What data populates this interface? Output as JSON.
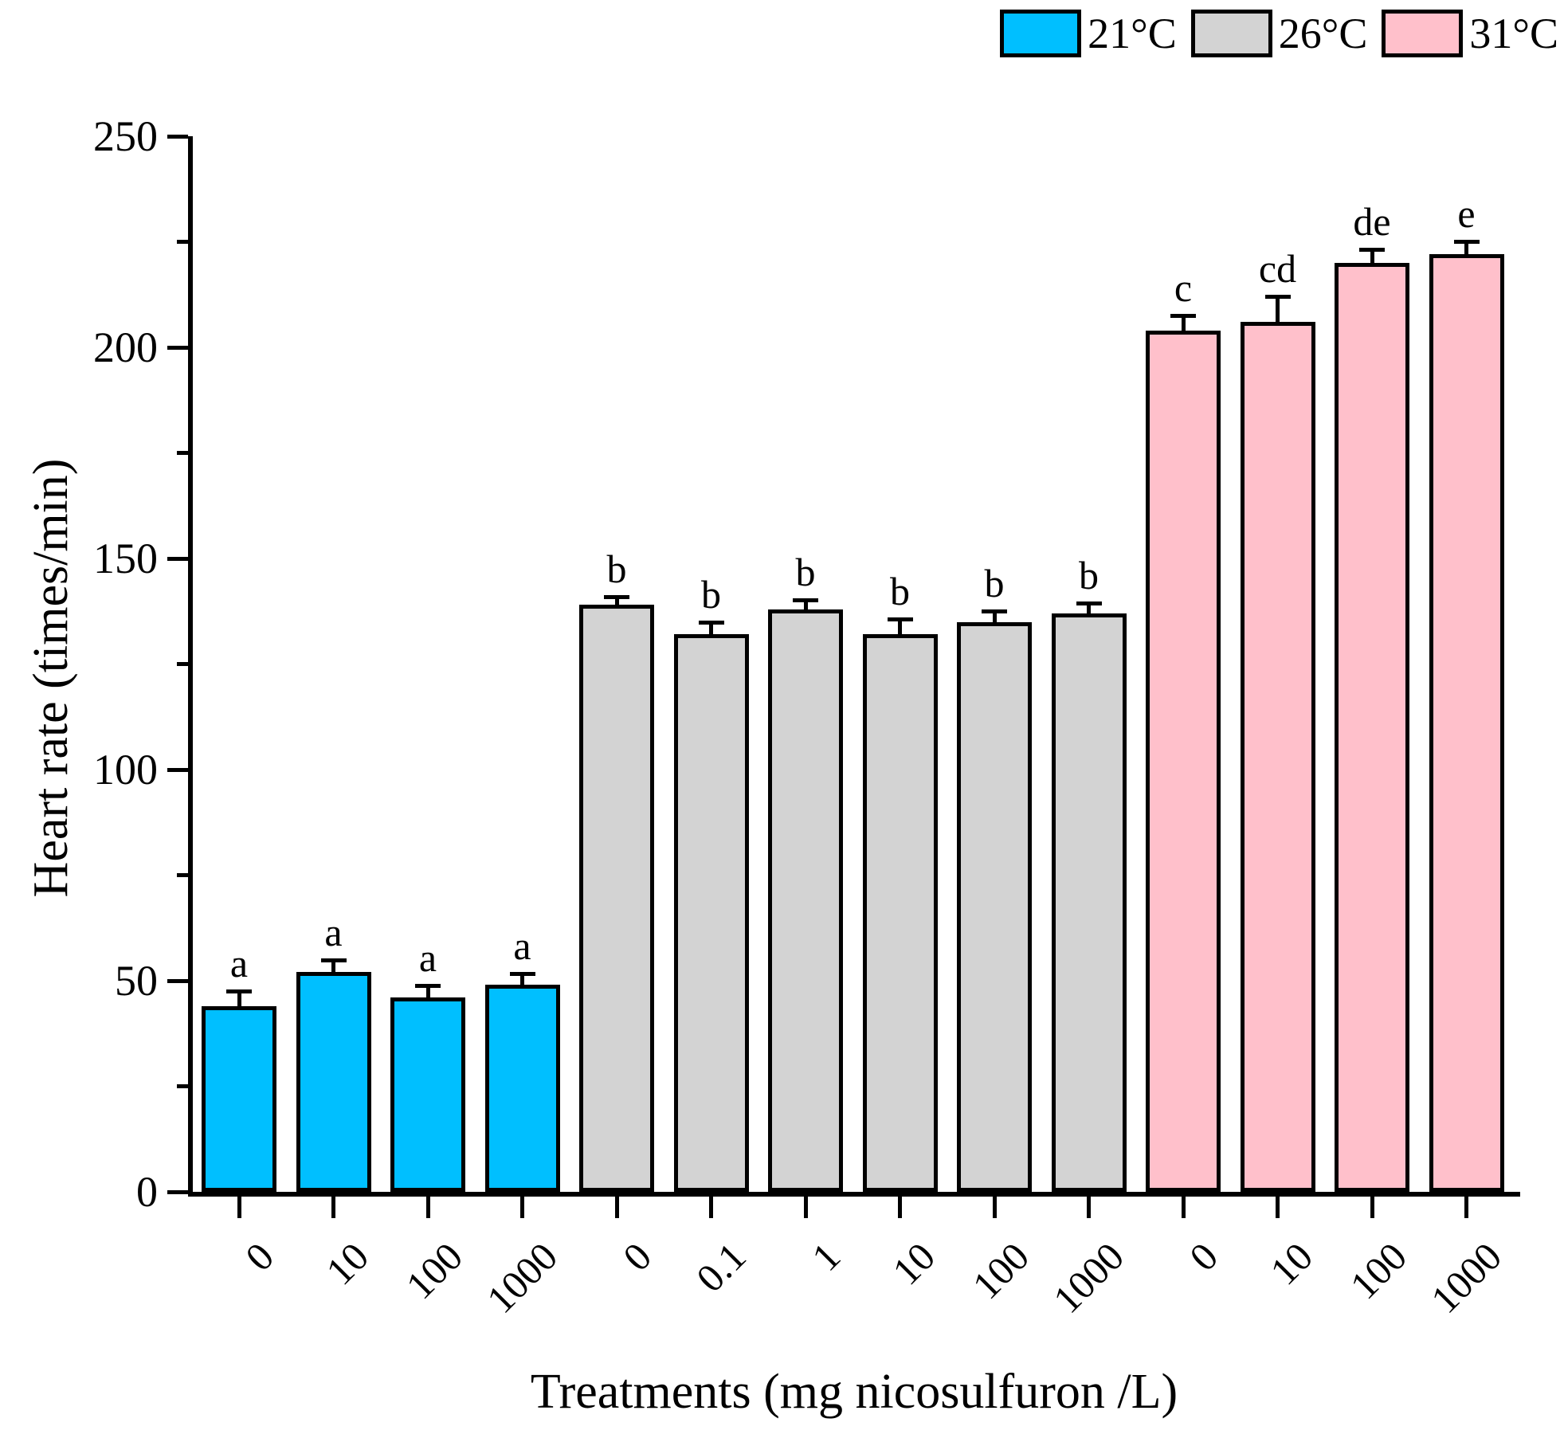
{
  "chart_data": {
    "type": "bar",
    "title": "",
    "xlabel": "Treatments (mg nicosulfuron /L)",
    "ylabel": "Heart rate (times/min)",
    "ylim": [
      0,
      250
    ],
    "y_ticks": [
      0,
      50,
      100,
      150,
      200,
      250
    ],
    "y_minor_ticks": [
      25,
      75,
      125,
      175,
      225
    ],
    "grid": false,
    "legend_position": "top-right",
    "error_bars": "upper, with caps",
    "bar_outline_color": "#000000",
    "series": [
      {
        "name": "21°C",
        "fill_color": "#00BFFF",
        "bars": [
          {
            "category": "0",
            "value": 44,
            "error": 3.4,
            "sig_letter": "a"
          },
          {
            "category": "10",
            "value": 52,
            "error": 2.7,
            "sig_letter": "a"
          },
          {
            "category": "100",
            "value": 46,
            "error": 2.6,
            "sig_letter": "a"
          },
          {
            "category": "1000",
            "value": 49,
            "error": 2.5,
            "sig_letter": "a"
          }
        ]
      },
      {
        "name": "26°C",
        "fill_color": "#D3D3D3",
        "bars": [
          {
            "category": "0",
            "value": 139,
            "error": 1.8,
            "sig_letter": "b"
          },
          {
            "category": "0.1",
            "value": 132,
            "error": 2.8,
            "sig_letter": "b"
          },
          {
            "category": "1",
            "value": 138,
            "error": 2.0,
            "sig_letter": "b"
          },
          {
            "category": "10",
            "value": 132,
            "error": 3.5,
            "sig_letter": "b"
          },
          {
            "category": "100",
            "value": 135,
            "error": 2.4,
            "sig_letter": "b"
          },
          {
            "category": "1000",
            "value": 137,
            "error": 2.2,
            "sig_letter": "b"
          }
        ]
      },
      {
        "name": "31°C",
        "fill_color": "#FFC0CB",
        "bars": [
          {
            "category": "0",
            "value": 204,
            "error": 3.4,
            "sig_letter": "c"
          },
          {
            "category": "10",
            "value": 206,
            "error": 5.9,
            "sig_letter": "cd"
          },
          {
            "category": "100",
            "value": 220,
            "error": 3.0,
            "sig_letter": "de"
          },
          {
            "category": "1000",
            "value": 222,
            "error": 3.0,
            "sig_letter": "e"
          }
        ]
      }
    ]
  }
}
